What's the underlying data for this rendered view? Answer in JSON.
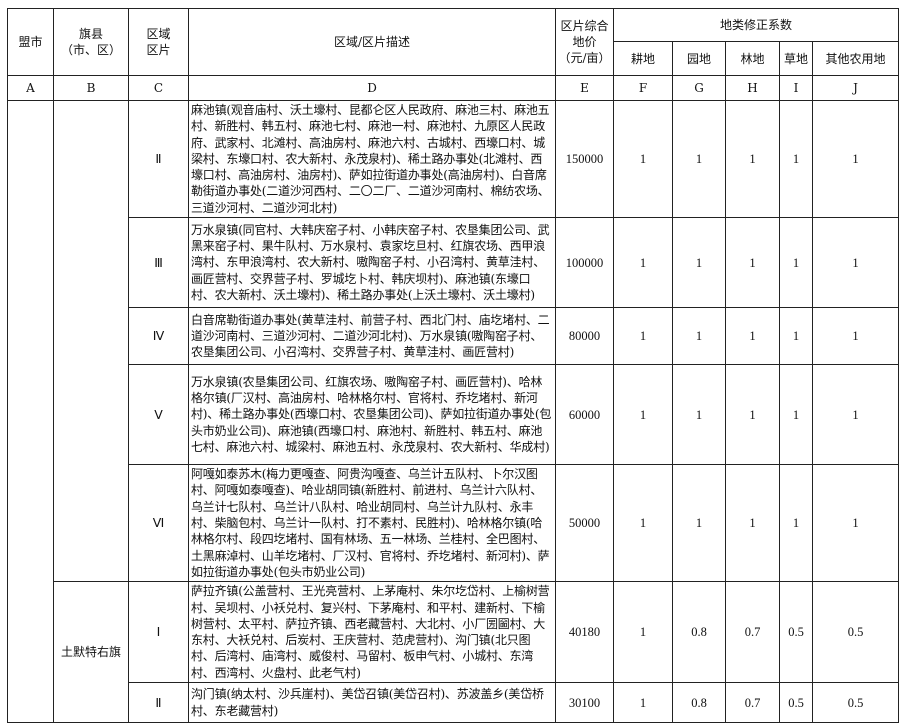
{
  "header": {
    "col_a": "盟市",
    "col_b": [
      "旗县",
      "（市、区）"
    ],
    "col_c": [
      "区域",
      "区片"
    ],
    "col_d": "区域/区片描述",
    "col_e": [
      "区片综合",
      "地价",
      "（元/亩）"
    ],
    "group": "地类修正系数",
    "sub": [
      "耕地",
      "园地",
      "林地",
      "草地",
      "其他农用地"
    ]
  },
  "letters": [
    "A",
    "B",
    "C",
    "D",
    "E",
    "F",
    "G",
    "H",
    "I",
    "J"
  ],
  "county_tumote": "土默特右旗",
  "rows": [
    {
      "zone": "Ⅱ",
      "desc": "麻池镇(观音庙村、沃土壕村、昆都仑区人民政府、麻池三村、麻池五村、新胜村、韩五村、麻池七村、麻池一村、麻池村、九原区人民政府、武家村、北滩村、高油房村、麻池六村、古城村、西壕口村、城梁村、东壕口村、农大新村、永茂泉村)、稀土路办事处(北滩村、西壕口村、高油房村、油房村)、萨如拉街道办事处(高油房村)、白音席勒街道办事处(二道沙河西村、二〇二厂、二道沙河南村、棉纺农场、三道沙河村、二道沙河北村)",
      "price": "150000",
      "f": "1",
      "g": "1",
      "h": "1",
      "i": "1",
      "j": "1"
    },
    {
      "zone": "Ⅲ",
      "desc": "万水泉镇(同官村、大韩庆窑子村、小韩庆窑子村、农垦集团公司、武黑来窑子村、果牛队村、万水泉村、袁家圪旦村、红旗农场、西甲浪湾村、东甲浪湾村、农大新村、嗷陶窑子村、小召湾村、黄草洼村、画匠营村、交界营子村、罗城圪卜村、韩庆坝村)、麻池镇(东壕口村、农大新村、沃土壕村)、稀土路办事处(上沃土壕村、沃土壕村)",
      "price": "100000",
      "f": "1",
      "g": "1",
      "h": "1",
      "i": "1",
      "j": "1"
    },
    {
      "zone": "Ⅳ",
      "desc": "白音席勒街道办事处(黄草洼村、前营子村、西北门村、庙圪堵村、二道沙河南村、三道沙河村、二道沙河北村)、万水泉镇(嗷陶窑子村、农垦集团公司、小召湾村、交界营子村、黄草洼村、画匠营村)",
      "price": "80000",
      "f": "1",
      "g": "1",
      "h": "1",
      "i": "1",
      "j": "1"
    },
    {
      "zone": "Ⅴ",
      "desc": "万水泉镇(农垦集团公司、红旗农场、嗷陶窑子村、画匠营村)、哈林格尔镇(厂汉村、高油房村、哈林格尔村、官将村、乔圪堵村、新河村)、稀土路办事处(西壕口村、农垦集团公司)、萨如拉街道办事处(包头市奶业公司)、麻池镇(西壕口村、麻池村、新胜村、韩五村、麻池七村、麻池六村、城梁村、麻池五村、永茂泉村、农大新村、华成村)",
      "price": "60000",
      "f": "1",
      "g": "1",
      "h": "1",
      "i": "1",
      "j": "1"
    },
    {
      "zone": "Ⅵ",
      "desc": "阿嘎如泰苏木(梅力更嘎查、阿贵沟嘎查、乌兰计五队村、卜尔汉图村、阿嘎如泰嘎查)、哈业胡同镇(新胜村、前进村、乌兰计六队村、乌兰计七队村、乌兰计八队村、哈业胡同村、乌兰计九队村、永丰村、柴脑包村、乌兰计一队村、打不素村、民胜村)、哈林格尔镇(哈林格尔村、段四圪堵村、国有林场、五一林场、兰桂村、全巴图村、土黑麻淖村、山羊圪堵村、厂汉村、官将村、乔圪堵村、新河村)、萨如拉街道办事处(包头市奶业公司)",
      "price": "50000",
      "f": "1",
      "g": "1",
      "h": "1",
      "i": "1",
      "j": "1"
    },
    {
      "zone": "Ⅰ",
      "desc": "萨拉齐镇(公盖营村、王光亮营村、上茅庵村、朱尔圪岱村、上榆树营村、吴坝村、小袄兑村、复兴村、下茅庵村、和平村、建新村、下榆树营村、太平村、萨拉齐镇、西老藏营村、大北村、小厂圐圙村、大东村、大袄兑村、后炭村、王庆营村、范虎营村)、沟门镇(北只图村、后湾村、庙湾村、威俊村、马留村、板申气村、小城村、东湾村、西湾村、火盘村、此老气村)",
      "price": "40180",
      "f": "1",
      "g": "0.8",
      "h": "0.7",
      "i": "0.5",
      "j": "0.5"
    },
    {
      "zone": "Ⅱ",
      "desc": "沟门镇(纳太村、沙兵崖村)、美岱召镇(美岱召村)、苏波盖乡(美岱桥村、东老藏营村)",
      "price": "30100",
      "f": "1",
      "g": "0.8",
      "h": "0.7",
      "i": "0.5",
      "j": "0.5"
    }
  ]
}
